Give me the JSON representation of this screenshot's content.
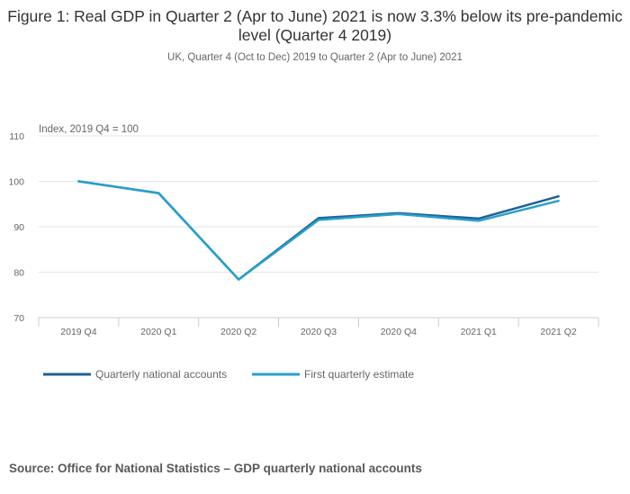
{
  "chart_data": {
    "type": "line",
    "title": "Figure 1: Real GDP in Quarter 2 (Apr to June) 2021 is now 3.3% below its pre-pandemic level (Quarter 4 2019)",
    "subtitle": "UK, Quarter 4 (Oct to Dec) 2019 to Quarter 2 (Apr to June) 2021",
    "ylabel": "Index, 2019 Q4 = 100",
    "xlabel": "",
    "categories": [
      "2019 Q4",
      "2020 Q1",
      "2020 Q2",
      "2020 Q3",
      "2020 Q4",
      "2021 Q1",
      "2021 Q2"
    ],
    "yticks": [
      70,
      80,
      90,
      100,
      110
    ],
    "ylim": [
      70,
      110
    ],
    "grid": true,
    "legend_position": "bottom-left",
    "series": [
      {
        "name": "Quarterly national accounts",
        "color": "#206095",
        "values": [
          100.0,
          97.4,
          78.4,
          91.9,
          93.0,
          91.8,
          96.7
        ]
      },
      {
        "name": "First quarterly estimate",
        "color": "#27a0cc",
        "values": [
          100.0,
          97.4,
          78.4,
          91.5,
          92.8,
          91.3,
          95.7
        ]
      }
    ]
  },
  "source": "Source: Office for National Statistics – GDP quarterly national accounts"
}
